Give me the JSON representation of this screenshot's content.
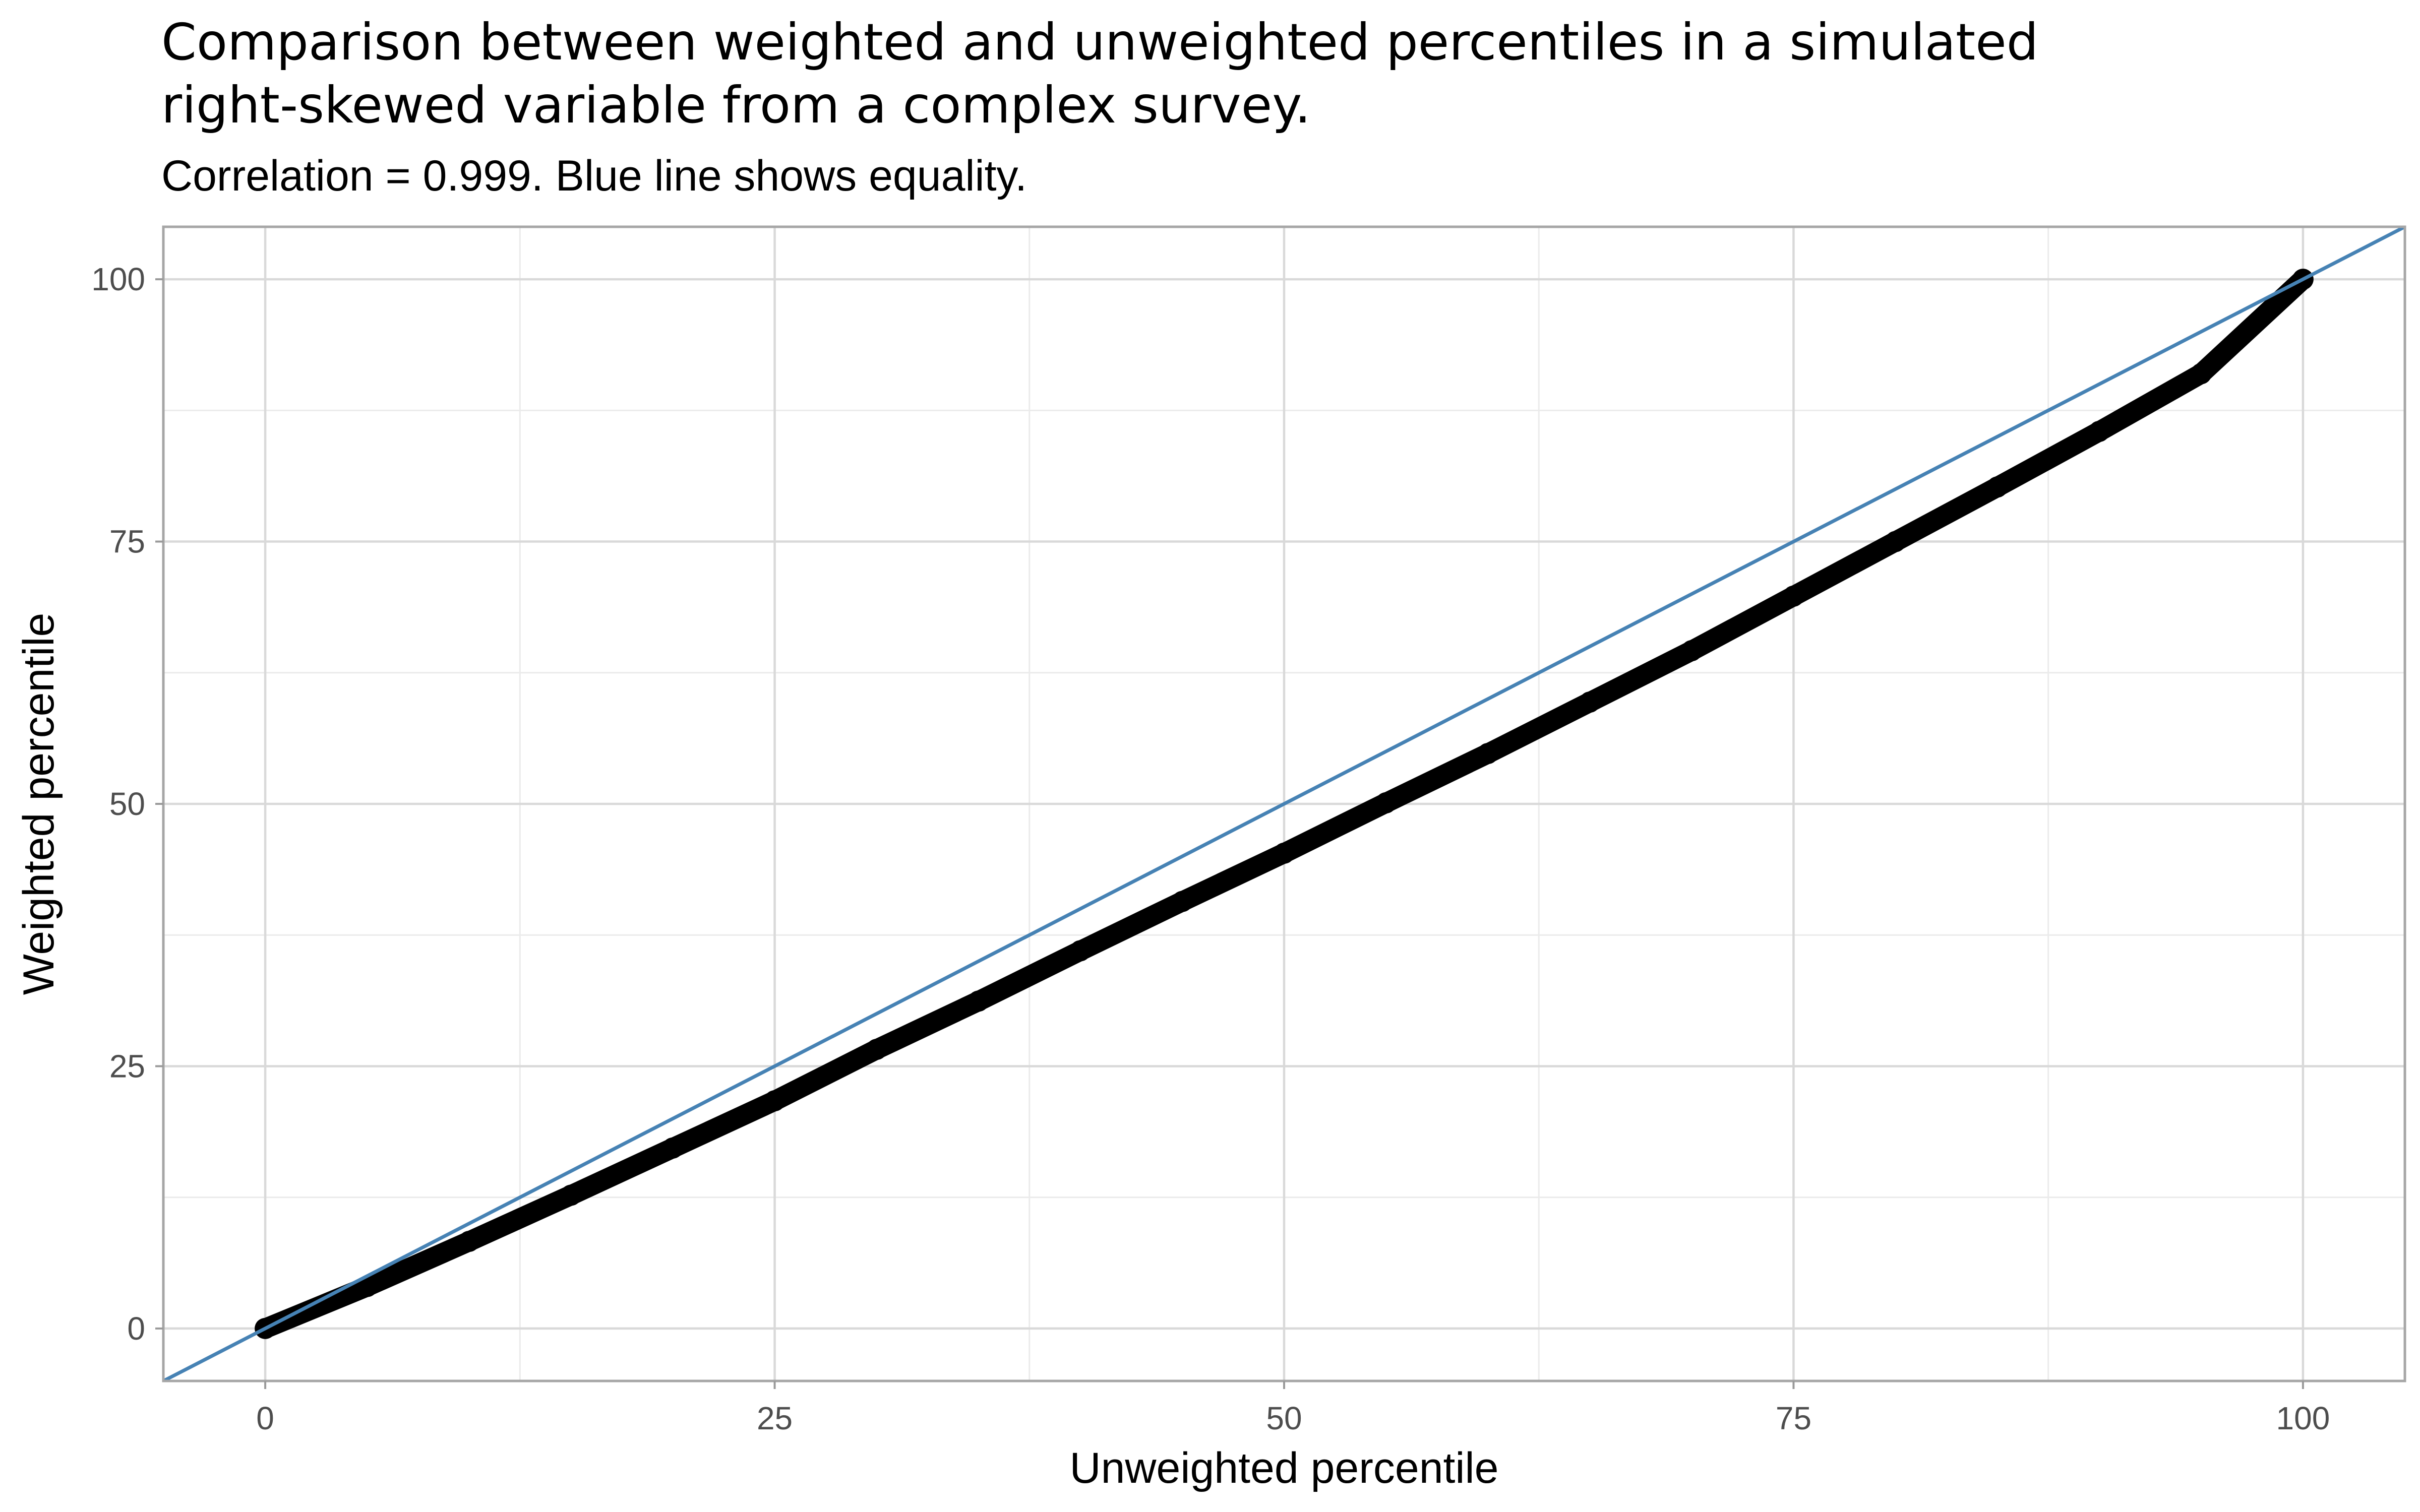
{
  "chart_data": {
    "type": "scatter",
    "title": "Comparison between weighted and unweighted percentiles in a simulated right-skewed variable from a complex survey.",
    "title_lines": [
      "Comparison between weighted and unweighted percentiles in a simulated",
      "right-skewed variable from a complex survey."
    ],
    "subtitle": "Correlation = 0.999. Blue line shows equality.",
    "xlabel": "Unweighted percentile",
    "ylabel": "Weighted percentile",
    "xlim": [
      -5,
      105
    ],
    "ylim": [
      -5,
      105
    ],
    "x_ticks": [
      0,
      25,
      50,
      75,
      100
    ],
    "y_ticks": [
      0,
      25,
      50,
      75,
      100
    ],
    "x_tick_labels": [
      "0",
      "25",
      "50",
      "75",
      "100"
    ],
    "y_tick_labels": [
      "0",
      "25",
      "50",
      "75",
      "100"
    ],
    "grid": true,
    "reference_line": {
      "slope": 1,
      "intercept": 0,
      "color": "#4682b4",
      "label": "equality"
    },
    "series": [
      {
        "color": "#000000",
        "x": [
          0,
          5,
          10,
          15,
          20,
          25,
          30,
          35,
          40,
          45,
          50,
          55,
          60,
          65,
          70,
          75,
          80,
          85,
          90,
          95,
          100
        ],
        "values": [
          0,
          4.0,
          8.3,
          12.7,
          17.2,
          21.7,
          26.6,
          31.2,
          36.0,
          40.7,
          45.3,
          50.1,
          54.8,
          59.7,
          64.6,
          69.8,
          75.0,
          80.2,
          85.5,
          91.0,
          100
        ]
      }
    ]
  }
}
